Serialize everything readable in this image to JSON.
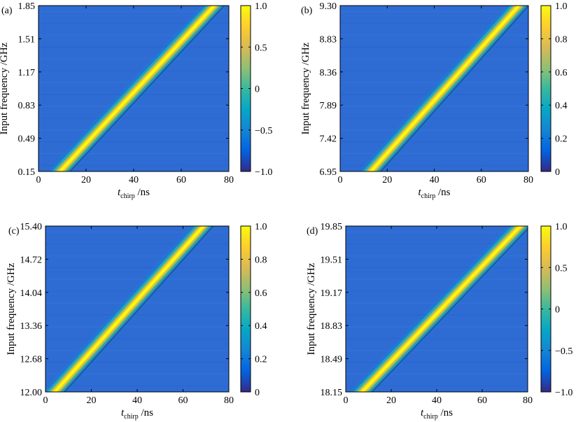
{
  "chart_data": [
    {
      "type": "heatmap",
      "panel_label": "(a)",
      "xlabel": "t",
      "xlabel_sub": "chirp",
      "xlabel_unit": " /ns",
      "ylabel": "Input frequency /GHz",
      "xlim": [
        0,
        80
      ],
      "ylim": [
        0.15,
        1.85
      ],
      "x_ticks": [
        0,
        20,
        40,
        60,
        80
      ],
      "y_ticks": [
        "0.15",
        "0.49",
        "0.83",
        "1.17",
        "1.51",
        "1.85"
      ],
      "colorbar_range": [
        -1.0,
        1.0
      ],
      "colorbar_ticks": [
        "−1.0",
        "−0.5",
        "0",
        "0.5",
        "1.0"
      ],
      "ridge": {
        "x_start": 8,
        "x_end": 75
      }
    },
    {
      "type": "heatmap",
      "panel_label": "(b)",
      "xlabel": "t",
      "xlabel_sub": "chirp",
      "xlabel_unit": " /ns",
      "ylabel": "Input frequency /GHz",
      "xlim": [
        0,
        80
      ],
      "ylim": [
        6.95,
        9.3
      ],
      "x_ticks": [
        0,
        20,
        40,
        60,
        80
      ],
      "y_ticks": [
        "6.95",
        "7.42",
        "7.89",
        "8.36",
        "8.83",
        "9.30"
      ],
      "colorbar_range": [
        0,
        1.0
      ],
      "colorbar_ticks": [
        "0",
        "0.2",
        "0.4",
        "0.6",
        "0.8",
        "1.0"
      ],
      "ridge": {
        "x_start": 12,
        "x_end": 77
      }
    },
    {
      "type": "heatmap",
      "panel_label": "(c)",
      "xlabel": "t",
      "xlabel_sub": "chirp",
      "xlabel_unit": " /ns",
      "ylabel": "Input frequency /GHz",
      "xlim": [
        0,
        80
      ],
      "ylim": [
        12.0,
        15.4
      ],
      "x_ticks": [
        0,
        20,
        40,
        60,
        80
      ],
      "y_ticks": [
        "12.00",
        "12.68",
        "13.36",
        "14.04",
        "14.72",
        "15.40"
      ],
      "colorbar_range": [
        0,
        1.0
      ],
      "colorbar_ticks": [
        "0",
        "0.2",
        "0.4",
        "0.6",
        "0.8",
        "1.0"
      ],
      "ridge": {
        "x_start": 3,
        "x_end": 70
      }
    },
    {
      "type": "heatmap",
      "panel_label": "(d)",
      "xlabel": "t",
      "xlabel_sub": "chirp",
      "xlabel_unit": " /ns",
      "ylabel": "Input frequency /GHz",
      "xlim": [
        0,
        80
      ],
      "ylim": [
        18.15,
        19.85
      ],
      "x_ticks": [
        0,
        20,
        40,
        60,
        80
      ],
      "y_ticks": [
        "18.15",
        "18.49",
        "18.83",
        "19.17",
        "19.51",
        "19.85"
      ],
      "colorbar_range": [
        -1.0,
        1.0
      ],
      "colorbar_ticks": [
        "−1.0",
        "−0.5",
        "0",
        "0.5",
        "1.0"
      ],
      "ridge": {
        "x_start": 6,
        "x_end": 78
      }
    }
  ]
}
